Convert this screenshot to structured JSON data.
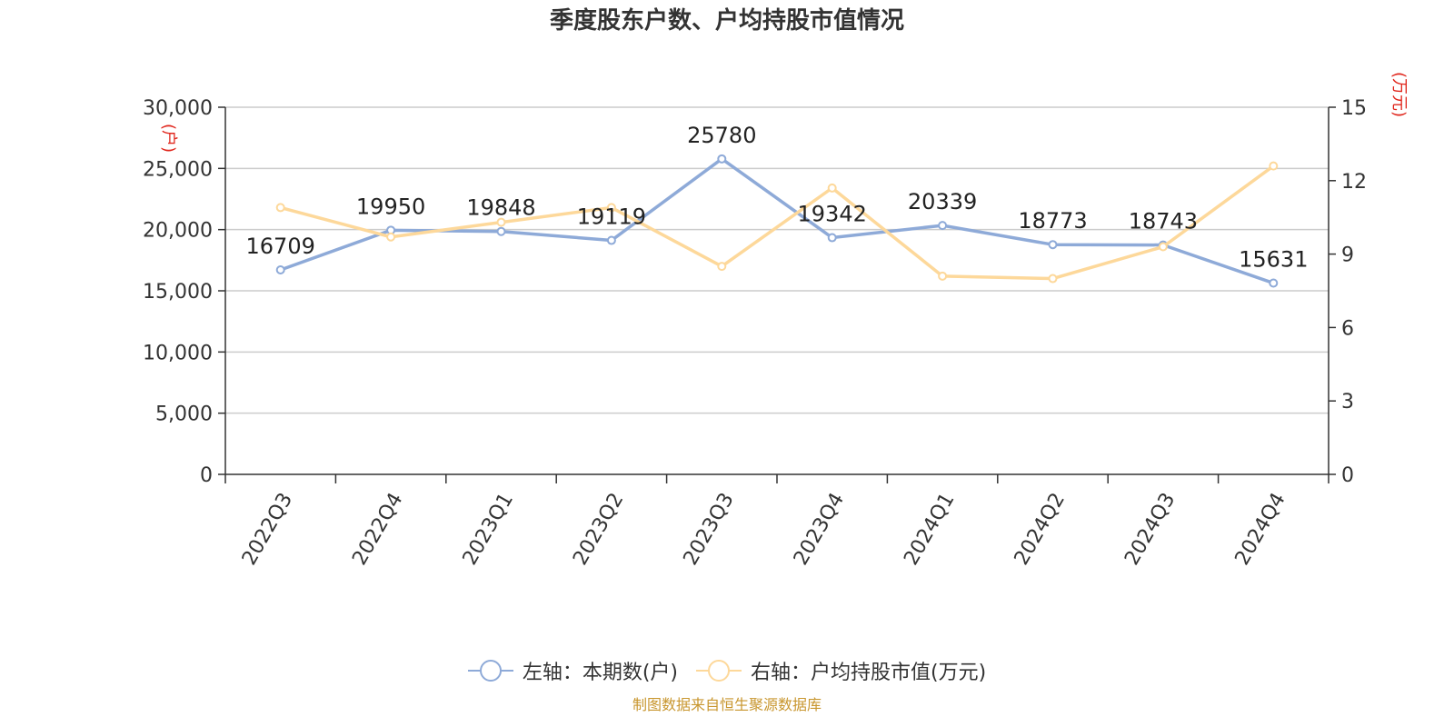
{
  "chart_data": {
    "type": "line",
    "title": "季度股东户数、户均持股市值情况",
    "categories": [
      "2022Q3",
      "2022Q4",
      "2023Q1",
      "2023Q2",
      "2023Q3",
      "2023Q4",
      "2024Q1",
      "2024Q2",
      "2024Q3",
      "2024Q4"
    ],
    "left_axis": {
      "unit_label": "(户)",
      "min": 0,
      "max": 30000,
      "ticks": [
        0,
        5000,
        10000,
        15000,
        20000,
        25000,
        30000
      ],
      "tick_labels": [
        "0",
        "5,000",
        "10,000",
        "15,000",
        "20,000",
        "25,000",
        "30,000"
      ]
    },
    "right_axis": {
      "unit_label": "(万元)",
      "min": 0,
      "max": 15,
      "ticks": [
        0,
        3,
        6,
        9,
        12,
        15
      ],
      "tick_labels": [
        "0",
        "3",
        "6",
        "9",
        "12",
        "15"
      ]
    },
    "series": [
      {
        "name": "左轴：本期数(户)",
        "axis": "left",
        "color": "#8eaad8",
        "values": [
          16709,
          19950,
          19848,
          19119,
          25780,
          19342,
          20339,
          18773,
          18743,
          15631
        ],
        "data_labels": [
          "16709",
          "19950",
          "19848",
          "19119",
          "25780",
          "19342",
          "20339",
          "18773",
          "18743",
          "15631"
        ]
      },
      {
        "name": "右轴：户均持股市值(万元)",
        "axis": "right",
        "color": "#fdd89a",
        "values": [
          10.9,
          9.7,
          10.3,
          10.9,
          8.5,
          11.7,
          8.1,
          8.0,
          9.3,
          12.6
        ]
      }
    ],
    "grid": true,
    "legend_position": "bottom-center",
    "unit_label_color": "#e0261c"
  },
  "source_text": "制图数据来自恒生聚源数据库",
  "source_color": "#c8962e"
}
